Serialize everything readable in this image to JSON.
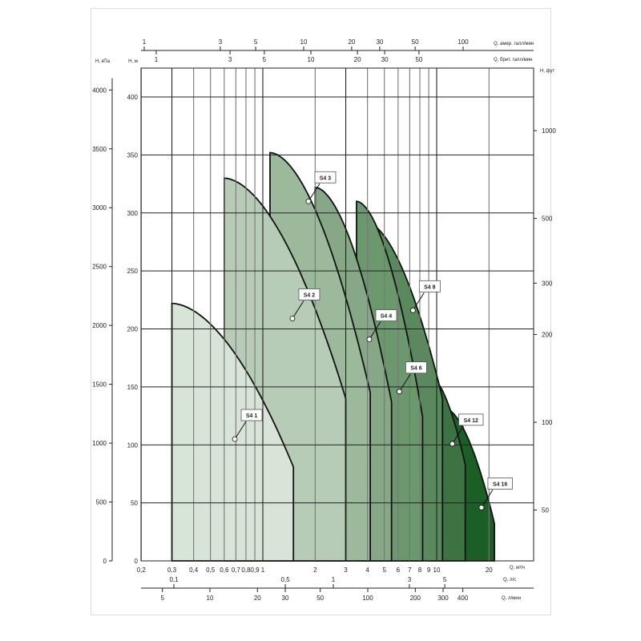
{
  "chart_data": {
    "type": "area",
    "title": "",
    "x_axis": {
      "label": "Q, м³/ч",
      "scale": "log",
      "range": [
        0.2,
        36
      ],
      "ticks": [
        0.2,
        0.3,
        0.4,
        0.5,
        0.6,
        0.7,
        0.8,
        0.9,
        1,
        2,
        3,
        4,
        5,
        6,
        7,
        8,
        9,
        10,
        20
      ],
      "tick_labels": [
        "0,2",
        "0,3",
        "0,4",
        "0,5",
        "0,6",
        "0,7",
        "0,8",
        "0,9",
        "1",
        "2",
        "3",
        "4",
        "5",
        "6",
        "7",
        "8",
        "9",
        "10",
        "20"
      ]
    },
    "y_axis": {
      "label": "H, м",
      "scale": "linear",
      "range": [
        0,
        425
      ],
      "ticks": [
        0,
        50,
        100,
        150,
        200,
        250,
        300,
        350,
        400
      ]
    },
    "secondary_axes": {
      "top_us": {
        "label": "Q, амер. галл/мин",
        "ticks": [
          1,
          3,
          5,
          10,
          20,
          30,
          50,
          100
        ]
      },
      "top_imp": {
        "label": "Q, брит. галл/мин",
        "ticks": [
          1,
          3,
          5,
          10,
          20,
          30,
          50
        ]
      },
      "left_kpa": {
        "label": "H, кПа",
        "ticks": [
          0,
          500,
          1000,
          1500,
          2000,
          2500,
          3000,
          3500,
          4000
        ]
      },
      "right_ft": {
        "label": "H, фут",
        "ticks": [
          50,
          100,
          200,
          300,
          500,
          1000
        ]
      },
      "bottom_ls": {
        "label": "Q, л/с",
        "ticks": [
          0.1,
          0.5,
          1,
          3,
          5
        ],
        "tick_labels": [
          "0,1",
          "0,5",
          "1",
          "3",
          "5"
        ]
      },
      "bottom_lmin": {
        "label": "Q, л/мин",
        "ticks": [
          5,
          10,
          20,
          30,
          50,
          100,
          200,
          300,
          400
        ]
      }
    },
    "grid": true,
    "series": [
      {
        "name": "S4 1",
        "q_start": 0.3,
        "h_start": 222,
        "q_end": 1.5,
        "h_end": 81,
        "marker": [
          0.69,
          105
        ],
        "color": "#d7e4d7"
      },
      {
        "name": "S4 2",
        "q_start": 0.6,
        "h_start": 330,
        "q_end": 3.0,
        "h_end": 140,
        "marker": [
          1.48,
          209
        ],
        "color": "#b7ccb6"
      },
      {
        "name": "S4 3",
        "q_start": 1.1,
        "h_start": 352,
        "q_end": 4.15,
        "h_end": 145,
        "marker": [
          1.83,
          310
        ],
        "color": "#9cb99c"
      },
      {
        "name": "S4 4",
        "q_start": 2.0,
        "h_start": 322,
        "q_end": 5.5,
        "h_end": 137,
        "marker": [
          4.1,
          191
        ],
        "color": "#86a887"
      },
      {
        "name": "S4 6",
        "q_start": 3.46,
        "h_start": 310,
        "q_end": 8.3,
        "h_end": 124,
        "marker": [
          6.1,
          146
        ],
        "color": "#6b986d"
      },
      {
        "name": "S4 8",
        "q_start": 3.9,
        "h_start": 292,
        "q_end": 10.8,
        "h_end": 140,
        "marker": [
          7.3,
          216
        ],
        "color": "#588a5b"
      },
      {
        "name": "S4 12",
        "q_start": 9.0,
        "h_start": 160,
        "q_end": 14.6,
        "h_end": 83,
        "marker": [
          12.3,
          101
        ],
        "color": "#3d7343"
      },
      {
        "name": "S4 16",
        "q_start": 11.0,
        "h_start": 132,
        "q_end": 21.5,
        "h_end": 32,
        "marker": [
          18.1,
          46
        ],
        "color": "#1b5f27"
      }
    ]
  }
}
